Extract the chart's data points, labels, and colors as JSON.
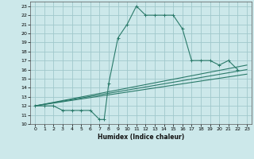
{
  "xlabel": "Humidex (Indice chaleur)",
  "bg_color": "#cce8ea",
  "grid_color": "#a0c8cc",
  "line_color": "#2a7a6a",
  "xlim": [
    -0.5,
    23.5
  ],
  "ylim": [
    10,
    23.5
  ],
  "xticks": [
    0,
    1,
    2,
    3,
    4,
    5,
    6,
    7,
    8,
    9,
    10,
    11,
    12,
    13,
    14,
    15,
    16,
    17,
    18,
    19,
    20,
    21,
    22,
    23
  ],
  "yticks": [
    10,
    11,
    12,
    13,
    14,
    15,
    16,
    17,
    18,
    19,
    20,
    21,
    22,
    23
  ],
  "line1_x": [
    0,
    1,
    2,
    3,
    4,
    5,
    6,
    7,
    7.5,
    8,
    9,
    10,
    11,
    12,
    13,
    14,
    15,
    16,
    17,
    18,
    19,
    20,
    21,
    22
  ],
  "line1_y": [
    12,
    12,
    12,
    11.5,
    11.5,
    11.5,
    11.5,
    10.5,
    10.5,
    14.5,
    19.5,
    21.0,
    23.0,
    22.0,
    22.0,
    22.0,
    22.0,
    20.5,
    17.0,
    17.0,
    17.0,
    16.5,
    17.0,
    16.0
  ],
  "line2_x": [
    0,
    23
  ],
  "line2_y": [
    12,
    16.5
  ],
  "line3_x": [
    0,
    23
  ],
  "line3_y": [
    12,
    15.5
  ],
  "line4_x": [
    0,
    23
  ],
  "line4_y": [
    12,
    16.0
  ]
}
